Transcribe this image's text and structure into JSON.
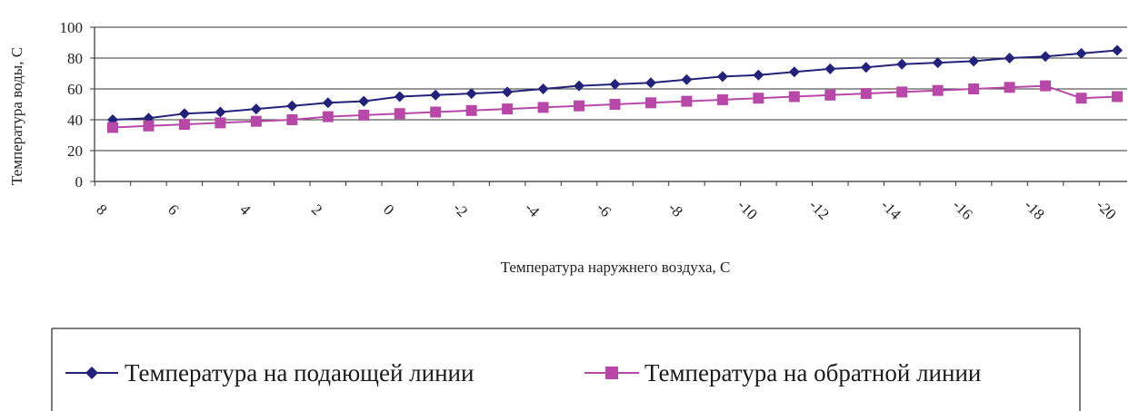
{
  "chart_data": {
    "type": "line",
    "title": "",
    "xlabel": "Температура наружнего воздуха, С",
    "ylabel": "Температура воды, С",
    "ylim": [
      0,
      100
    ],
    "yticks": [
      "0",
      "20",
      "40",
      "60",
      "80",
      "100"
    ],
    "x": [
      8,
      7,
      6,
      5,
      4,
      3,
      2,
      1,
      0,
      -1,
      -2,
      -3,
      -4,
      -5,
      -6,
      -7,
      -8,
      -9,
      -10,
      -11,
      -12,
      -13,
      -14,
      -15,
      -16,
      -17,
      -18,
      -19,
      -20
    ],
    "xtick_labels": [
      "8",
      "6",
      "4",
      "2",
      "0",
      "-2",
      "-4",
      "-6",
      "-8",
      "-10",
      "-12",
      "-14",
      "-16",
      "-18",
      "-20"
    ],
    "grid": "horizontal",
    "legend_position": "bottom",
    "series": [
      {
        "name": "Температура на подающей линии",
        "color": "#22227a",
        "marker": "diamond",
        "values": [
          40,
          41,
          44,
          45,
          47,
          49,
          51,
          52,
          55,
          56,
          57,
          58,
          60,
          62,
          63,
          64,
          66,
          68,
          69,
          71,
          73,
          74,
          76,
          77,
          78,
          80,
          81,
          83,
          85
        ]
      },
      {
        "name": "Температура на обратной линии",
        "color": "#b848a8",
        "marker": "square",
        "values": [
          35,
          36,
          37,
          38,
          39,
          40,
          42,
          43,
          44,
          45,
          46,
          47,
          48,
          49,
          50,
          51,
          52,
          53,
          54,
          55,
          56,
          57,
          58,
          59,
          60,
          61,
          62,
          54,
          55
        ]
      }
    ]
  }
}
